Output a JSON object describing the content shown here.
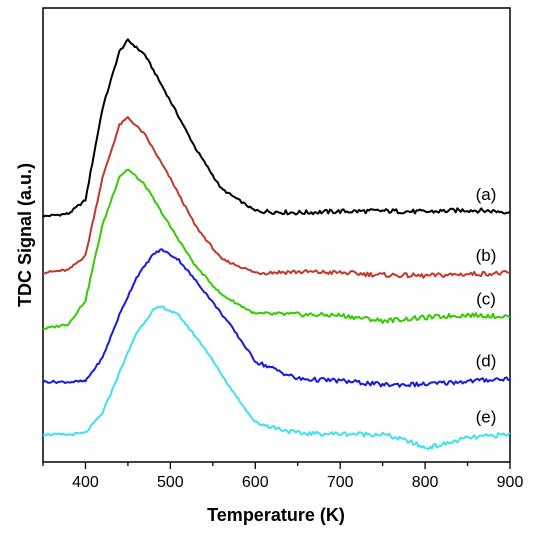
{
  "chart_data": {
    "type": "line",
    "title": "",
    "xlabel": "Temperature (K)",
    "ylabel": "TDC Signal (a.u.)",
    "xlim": [
      350,
      900
    ],
    "ylim": [
      0,
      1
    ],
    "xticks": [
      400,
      500,
      600,
      700,
      800,
      900
    ],
    "yticks": [],
    "grid": false,
    "legend": "none",
    "series": [
      {
        "name": "(a)",
        "color": "#000000",
        "x": [
          350,
          380,
          400,
          420,
          440,
          450,
          470,
          500,
          530,
          560,
          600,
          650,
          700,
          750,
          800,
          850,
          900
        ],
        "y": [
          0.541,
          0.547,
          0.577,
          0.778,
          0.904,
          0.929,
          0.897,
          0.795,
          0.69,
          0.602,
          0.553,
          0.549,
          0.552,
          0.553,
          0.551,
          0.555,
          0.551
        ]
      },
      {
        "name": "(b)",
        "color": "#c0392b",
        "x": [
          350,
          380,
          400,
          420,
          440,
          450,
          470,
          500,
          530,
          560,
          600,
          650,
          700,
          750,
          800,
          850,
          900
        ],
        "y": [
          0.417,
          0.423,
          0.455,
          0.625,
          0.742,
          0.759,
          0.721,
          0.624,
          0.519,
          0.447,
          0.417,
          0.419,
          0.417,
          0.412,
          0.41,
          0.414,
          0.416
        ]
      },
      {
        "name": "(c)",
        "color": "#33cc00",
        "x": [
          350,
          380,
          400,
          420,
          440,
          450,
          470,
          500,
          530,
          560,
          600,
          650,
          700,
          750,
          800,
          850,
          900
        ],
        "y": [
          0.293,
          0.304,
          0.356,
          0.521,
          0.629,
          0.645,
          0.61,
          0.518,
          0.431,
          0.369,
          0.326,
          0.325,
          0.323,
          0.311,
          0.318,
          0.324,
          0.32
        ]
      },
      {
        "name": "(d)",
        "color": "#1a1adb",
        "x": [
          350,
          380,
          400,
          420,
          440,
          460,
          480,
          490,
          510,
          540,
          570,
          600,
          650,
          700,
          750,
          800,
          850,
          900
        ],
        "y": [
          0.177,
          0.176,
          0.178,
          0.229,
          0.324,
          0.406,
          0.458,
          0.468,
          0.445,
          0.376,
          0.303,
          0.222,
          0.183,
          0.179,
          0.17,
          0.171,
          0.178,
          0.184
        ]
      },
      {
        "name": "(e)",
        "color": "#40e0f0",
        "x": [
          350,
          380,
          400,
          420,
          440,
          460,
          480,
          490,
          510,
          540,
          570,
          600,
          650,
          700,
          750,
          780,
          800,
          820,
          850,
          900
        ],
        "y": [
          0.061,
          0.06,
          0.064,
          0.107,
          0.197,
          0.284,
          0.335,
          0.342,
          0.323,
          0.252,
          0.165,
          0.087,
          0.063,
          0.062,
          0.061,
          0.046,
          0.031,
          0.038,
          0.053,
          0.061
        ]
      }
    ]
  }
}
